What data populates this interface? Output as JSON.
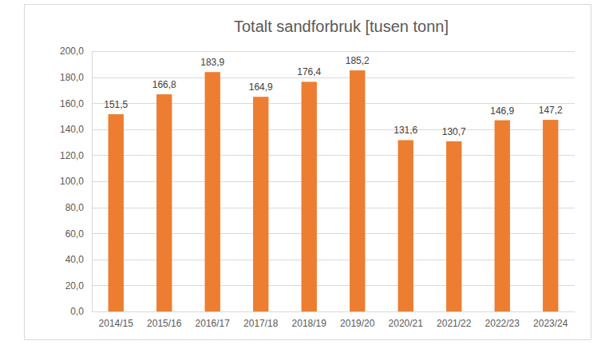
{
  "chart_data": {
    "type": "bar",
    "title": "Totalt sandforbruk [tusen tonn]",
    "categories": [
      "2014/15",
      "2015/16",
      "2016/17",
      "2017/18",
      "2018/19",
      "2019/20",
      "2020/21",
      "2021/22",
      "2022/23",
      "2023/24"
    ],
    "values": [
      151.5,
      166.8,
      183.9,
      164.9,
      176.4,
      185.2,
      131.6,
      130.7,
      146.9,
      147.2
    ],
    "value_labels": [
      "151,5",
      "166,8",
      "183,9",
      "164,9",
      "176,4",
      "185,2",
      "131,6",
      "130,7",
      "146,9",
      "147,2"
    ],
    "color": "#ed7d31",
    "ylim": [
      0,
      200
    ],
    "yticks": [
      {
        "value": 0,
        "label": "0,0"
      },
      {
        "value": 20,
        "label": "20,0"
      },
      {
        "value": 40,
        "label": "40,0"
      },
      {
        "value": 60,
        "label": "60,0"
      },
      {
        "value": 80,
        "label": "80,0"
      },
      {
        "value": 100,
        "label": "100,0"
      },
      {
        "value": 120,
        "label": "120,0"
      },
      {
        "value": 140,
        "label": "140,0"
      },
      {
        "value": 160,
        "label": "160,0"
      },
      {
        "value": 180,
        "label": "180,0"
      },
      {
        "value": 200,
        "label": "200,0"
      }
    ],
    "grid": true,
    "data_labels": true
  }
}
